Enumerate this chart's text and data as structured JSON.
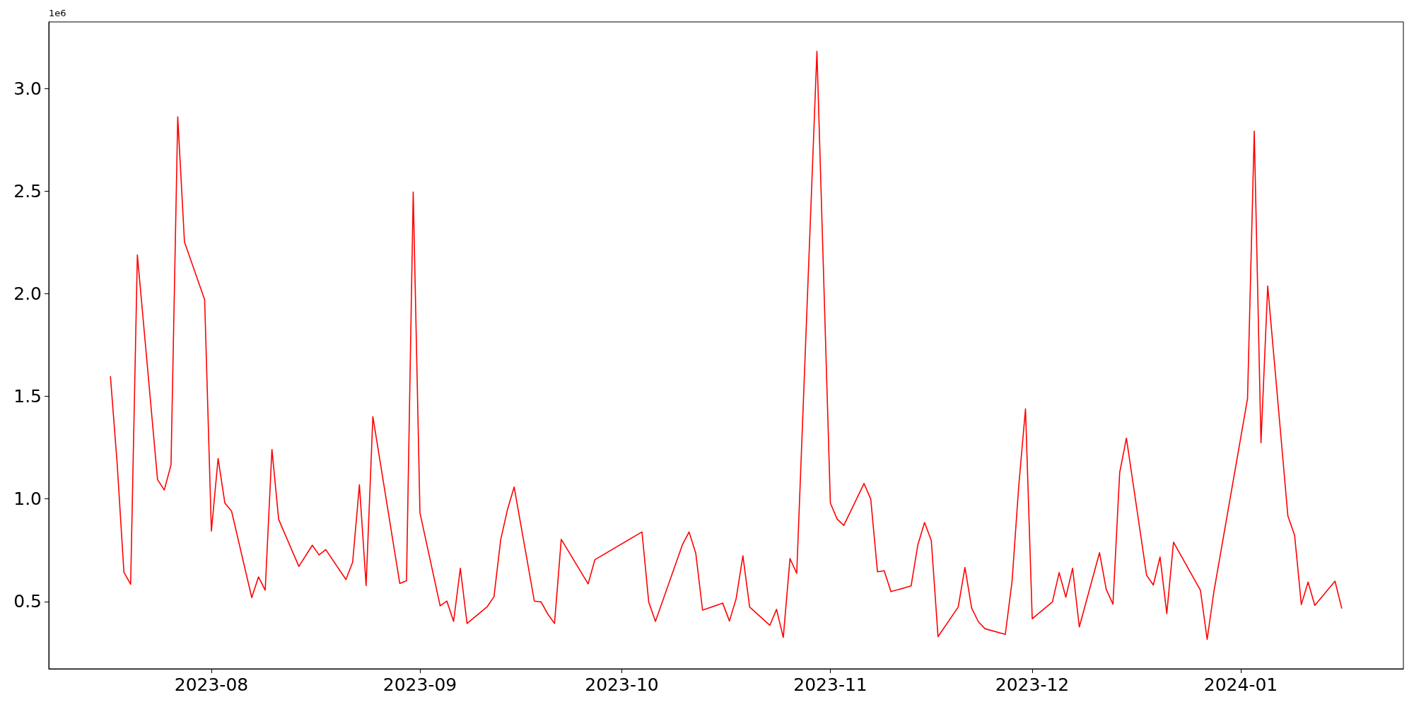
{
  "chart_data": {
    "type": "line",
    "x": [
      "2023-07-17",
      "2023-07-18",
      "2023-07-19",
      "2023-07-20",
      "2023-07-21",
      "2023-07-24",
      "2023-07-25",
      "2023-07-26",
      "2023-07-27",
      "2023-07-28",
      "2023-07-31",
      "2023-08-01",
      "2023-08-02",
      "2023-08-03",
      "2023-08-04",
      "2023-08-07",
      "2023-08-08",
      "2023-08-09",
      "2023-08-10",
      "2023-08-11",
      "2023-08-14",
      "2023-08-16",
      "2023-08-17",
      "2023-08-18",
      "2023-08-21",
      "2023-08-22",
      "2023-08-23",
      "2023-08-24",
      "2023-08-25",
      "2023-08-29",
      "2023-08-30",
      "2023-08-31",
      "2023-09-01",
      "2023-09-04",
      "2023-09-05",
      "2023-09-06",
      "2023-09-07",
      "2023-09-08",
      "2023-09-11",
      "2023-09-12",
      "2023-09-13",
      "2023-09-14",
      "2023-09-15",
      "2023-09-18",
      "2023-09-19",
      "2023-09-20",
      "2023-09-21",
      "2023-09-22",
      "2023-09-26",
      "2023-09-27",
      "2023-10-04",
      "2023-10-05",
      "2023-10-06",
      "2023-10-10",
      "2023-10-11",
      "2023-10-12",
      "2023-10-13",
      "2023-10-16",
      "2023-10-17",
      "2023-10-18",
      "2023-10-19",
      "2023-10-20",
      "2023-10-23",
      "2023-10-24",
      "2023-10-25",
      "2023-10-26",
      "2023-10-27",
      "2023-10-30",
      "2023-11-01",
      "2023-11-02",
      "2023-11-03",
      "2023-11-06",
      "2023-11-07",
      "2023-11-08",
      "2023-11-09",
      "2023-11-10",
      "2023-11-13",
      "2023-11-14",
      "2023-11-15",
      "2023-11-16",
      "2023-11-17",
      "2023-11-20",
      "2023-11-21",
      "2023-11-22",
      "2023-11-23",
      "2023-11-24",
      "2023-11-27",
      "2023-11-28",
      "2023-11-29",
      "2023-11-30",
      "2023-12-01",
      "2023-12-04",
      "2023-12-05",
      "2023-12-06",
      "2023-12-07",
      "2023-12-08",
      "2023-12-11",
      "2023-12-12",
      "2023-12-13",
      "2023-12-14",
      "2023-12-15",
      "2023-12-18",
      "2023-12-19",
      "2023-12-20",
      "2023-12-21",
      "2023-12-22",
      "2023-12-26",
      "2023-12-27",
      "2023-12-28",
      "2024-01-02",
      "2024-01-03",
      "2024-01-04",
      "2024-01-05",
      "2024-01-08",
      "2024-01-09",
      "2024-01-10",
      "2024-01-11",
      "2024-01-12",
      "2024-01-15",
      "2024-01-16"
    ],
    "series": [
      {
        "color": "#ff0000",
        "values": [
          1.595,
          1.17,
          0.643,
          0.584,
          2.189,
          1.094,
          1.043,
          1.166,
          2.861,
          2.252,
          1.97,
          0.843,
          1.197,
          0.98,
          0.94,
          0.519,
          0.62,
          0.555,
          1.241,
          0.9,
          0.671,
          0.774,
          0.727,
          0.753,
          0.607,
          0.692,
          1.069,
          0.578,
          1.401,
          0.588,
          0.601,
          2.495,
          0.932,
          0.479,
          0.502,
          0.403,
          0.662,
          0.393,
          0.475,
          0.523,
          0.801,
          0.947,
          1.058,
          0.502,
          0.498,
          0.439,
          0.393,
          0.803,
          0.586,
          0.704,
          0.839,
          0.498,
          0.403,
          0.776,
          0.839,
          0.734,
          0.458,
          0.492,
          0.405,
          0.515,
          0.723,
          0.473,
          0.384,
          0.462,
          0.325,
          0.709,
          0.637,
          3.181,
          0.98,
          0.902,
          0.871,
          1.075,
          0.999,
          0.645,
          0.65,
          0.548,
          0.576,
          0.776,
          0.885,
          0.797,
          0.329,
          0.473,
          0.666,
          0.468,
          0.401,
          0.367,
          0.34,
          0.597,
          1.064,
          1.439,
          0.416,
          0.498,
          0.641,
          0.521,
          0.662,
          0.376,
          0.738,
          0.559,
          0.487,
          1.128,
          1.296,
          0.628,
          0.58,
          0.717,
          0.441,
          0.789,
          0.555,
          0.315,
          0.548,
          1.488,
          2.792,
          1.273,
          2.037,
          0.917,
          0.822,
          0.485,
          0.595,
          0.481,
          0.599,
          0.468
        ]
      }
    ],
    "xlim": [
      "2023-07-07T20:00",
      "2024-01-25T04:00"
    ],
    "xticks": [
      "2023-08",
      "2023-09",
      "2023-10",
      "2023-11",
      "2023-12",
      "2024-01"
    ],
    "ylim": [
      0.172,
      3.324
    ],
    "yticks": [
      0.5,
      {
        "value": 1,
        "label": "1.0"
      },
      1.5,
      {
        "value": 2,
        "label": "2.0"
      },
      2.5,
      {
        "value": 3,
        "label": "3.0"
      }
    ],
    "annotations": [
      "1e6"
    ],
    "marker": "none",
    "line_style": "solid"
  }
}
